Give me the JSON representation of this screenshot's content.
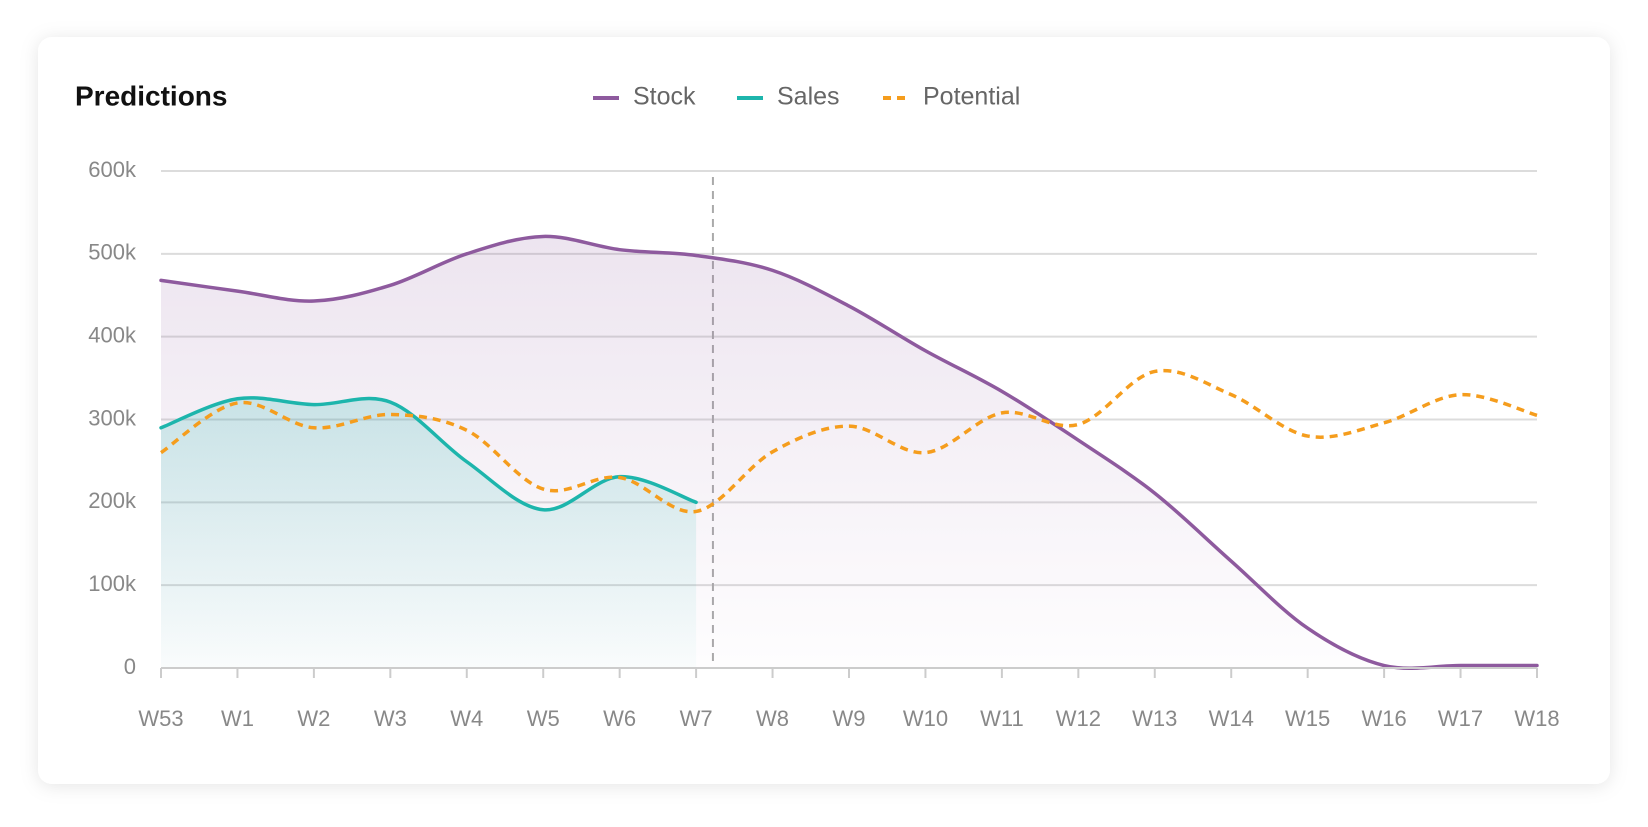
{
  "chart_data": {
    "type": "line",
    "title": "Predictions",
    "categories": [
      "W53",
      "W1",
      "W2",
      "W3",
      "W4",
      "W5",
      "W6",
      "W7",
      "W8",
      "W9",
      "W10",
      "W11",
      "W12",
      "W13",
      "W14",
      "W15",
      "W16",
      "W17",
      "W18"
    ],
    "series": [
      {
        "name": "Stock",
        "color": "#8e5a9e",
        "line_style": "solid",
        "area": true,
        "values": [
          468000,
          455000,
          443000,
          462000,
          500000,
          521000,
          505000,
          498000,
          480000,
          437000,
          383000,
          334000,
          275000,
          211000,
          129000,
          48000,
          3000,
          3000,
          3000
        ]
      },
      {
        "name": "Sales",
        "color": "#1db5ac",
        "line_style": "solid",
        "area": true,
        "values": [
          290000,
          325000,
          318000,
          321000,
          249000,
          191000,
          231000,
          200000,
          null,
          null,
          null,
          null,
          null,
          null,
          null,
          null,
          null,
          null,
          null
        ]
      },
      {
        "name": "Potential",
        "color": "#f59d1d",
        "line_style": "dashed",
        "area": false,
        "values": [
          260000,
          320000,
          290000,
          306000,
          287000,
          216000,
          230000,
          189000,
          261000,
          292000,
          260000,
          308000,
          294000,
          358000,
          330000,
          280000,
          296000,
          330000,
          305000
        ]
      }
    ],
    "ylim": [
      0,
      600000
    ],
    "yticks": [
      0,
      {
        "value": 100000,
        "label": "100k"
      },
      {
        "value": 200000,
        "label": "200k"
      },
      {
        "value": 300000,
        "label": "300k"
      },
      {
        "value": 400000,
        "label": "400k"
      },
      {
        "value": 500000,
        "label": "500k"
      },
      {
        "value": 600000,
        "label": "600k"
      }
    ],
    "grid": true,
    "legend": "top"
  }
}
